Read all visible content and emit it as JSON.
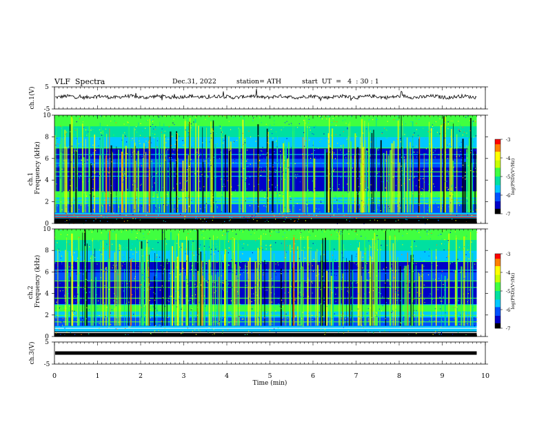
{
  "header": {
    "title": "VLF  Spectra",
    "date": "Dec.31, 2022",
    "station": "station= ATH",
    "start": "start  UT  =   4  : 30 : 1"
  },
  "chart_data": {
    "type": "heatmap",
    "xlabel": "Time  (min)",
    "xlim": [
      0,
      10
    ],
    "xticks": [
      "0",
      "1",
      "2",
      "3",
      "4",
      "5",
      "6",
      "7",
      "8",
      "9",
      "10"
    ],
    "data_end_min": 9.8,
    "panels": [
      {
        "id": "ch1-waveform",
        "type": "line",
        "ylabel": "ch.1(V)",
        "ylim": [
          -5,
          5
        ],
        "yticks": [
          "5",
          "-5"
        ],
        "baseline": 0.5
      },
      {
        "id": "ch1-spectrogram",
        "type": "heatmap",
        "ylabel_top": "ch.1",
        "ylabel": "Frequency  (kHz)",
        "ylim": [
          0,
          10
        ],
        "yticks": [
          "0",
          "2",
          "4",
          "6",
          "8",
          "10"
        ]
      },
      {
        "id": "ch2-spectrogram",
        "type": "heatmap",
        "ylabel_top": "ch.2",
        "ylabel": "Frequency  (kHz)",
        "ylim": [
          0,
          10
        ],
        "yticks": [
          "0",
          "2",
          "4",
          "6",
          "8",
          "10"
        ]
      },
      {
        "id": "ch3-waveform",
        "type": "line",
        "ylabel": "ch.3(V)",
        "ylim": [
          -5,
          5
        ],
        "yticks": [
          "5",
          "-5"
        ],
        "baseline": 0
      }
    ],
    "colorbar": {
      "label": "log(PSD)(V²/Hz)",
      "range": [
        -7,
        -3
      ],
      "ticks": [
        "-3",
        "-4",
        "-5",
        "-6",
        "-7"
      ],
      "colors": [
        "#000000",
        "#0000c8",
        "#0050ff",
        "#00c8ff",
        "#00e0a0",
        "#40ff40",
        "#c8ff00",
        "#ffff00",
        "#ff8000",
        "#ff0000",
        "#ffffff"
      ]
    },
    "grid": false
  }
}
